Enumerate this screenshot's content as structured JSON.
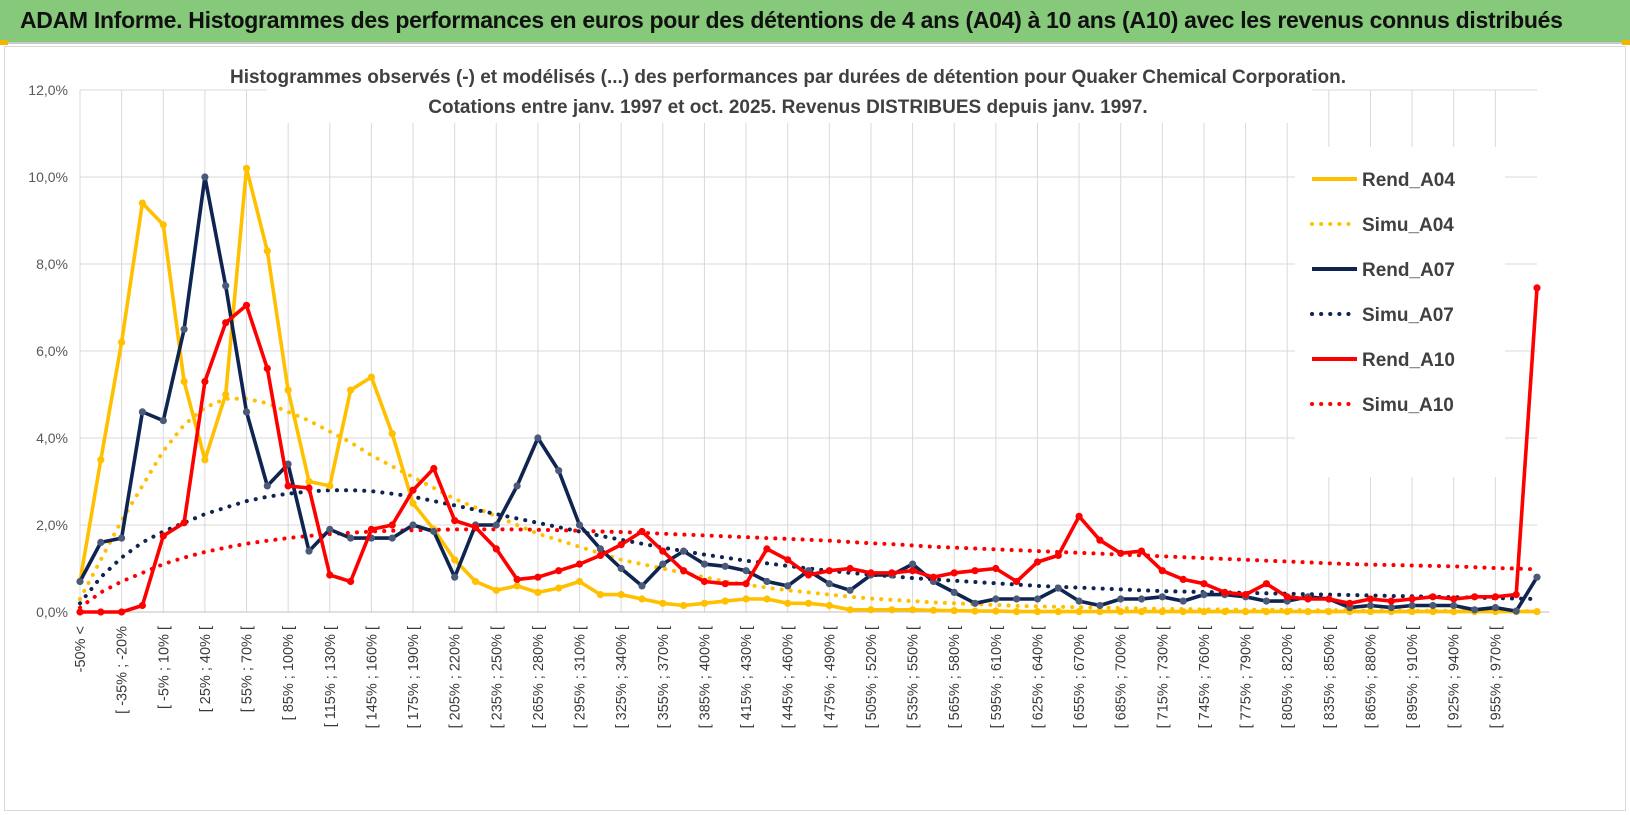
{
  "banner": {
    "title": "ADAM Informe. Histogrammes des performances en euros pour des détentions de 4 ans (A04) à 10 ans (A10) avec les revenus connus distribués"
  },
  "colors": {
    "banner_bg": "#86c97a",
    "A04": "#ffc000",
    "A07": "#0f2451",
    "A10": "#ff0000",
    "grid": "#d9d9d9"
  },
  "chart_data": {
    "type": "line",
    "title_line1": "Histogrammes observés (-) et modélisés (...) des performances par durées de détention pour Quaker Chemical Corporation.",
    "title_line2": "Cotations entre janv. 1997 et oct. 2025.  Revenus DISTRIBUES depuis janv. 1997.",
    "ylim": [
      0,
      12
    ],
    "yticks": [
      "0,0%",
      "2,0%",
      "4,0%",
      "6,0%",
      "8,0%",
      "10,0%",
      "12,0%"
    ],
    "legend_position": "right",
    "x_labels": [
      "-50% <",
      "[ -35% ; -20%",
      "[ -5% ; 10% [",
      "[ 25% ; 40% [",
      "[ 55% ; 70% [",
      "[ 85% ; 100% [",
      "[ 115% ; 130% [",
      "[ 145% ; 160% [",
      "[ 175% ; 190% [",
      "[ 205% ; 220% [",
      "[ 235% ; 250% [",
      "[ 265% ; 280% [",
      "[ 295% ; 310% [",
      "[ 325% ; 340% [",
      "[ 355% ; 370% [",
      "[ 385% ; 400% [",
      "[ 415% ; 430% [",
      "[ 445% ; 460% [",
      "[ 475% ; 490% [",
      "[ 505% ; 520% [",
      "[ 535% ; 550% [",
      "[ 565% ; 580% [",
      "[ 595% ; 610% [",
      "[ 625% ; 640% [",
      "[ 655% ; 670% [",
      "[ 685% ; 700% [",
      "[ 715% ; 730% [",
      "[ 745% ; 760% [",
      "[ 775% ; 790% [",
      "[ 805% ; 820% [",
      "[ 835% ; 850% [",
      "[ 865% ; 880% [",
      "[ 895% ; 910% [",
      "[ 925% ; 940% [",
      "[ 955% ; 970% ["
    ],
    "series": [
      {
        "name": "Rend_A04",
        "style": "solid",
        "color": "#ffc000",
        "values": [
          0.7,
          3.5,
          6.2,
          9.4,
          8.9,
          5.3,
          3.5,
          5.0,
          10.2,
          8.3,
          5.1,
          3.0,
          2.9,
          5.1,
          5.4,
          4.1,
          2.5,
          1.9,
          1.2,
          0.7,
          0.5,
          0.6,
          0.45,
          0.55,
          0.7,
          0.4,
          0.4,
          0.3,
          0.2,
          0.15,
          0.2,
          0.25,
          0.3,
          0.3,
          0.2,
          0.2,
          0.15,
          0.05,
          0.05,
          0.05,
          0.05,
          0.04,
          0.03,
          0.02,
          0.02,
          0.01,
          0.01,
          0.01,
          0.01,
          0.01,
          0.01,
          0.01,
          0.01,
          0.01,
          0.01,
          0.01,
          0.01,
          0.01,
          0.01,
          0.01,
          0.01,
          0.01,
          0.01,
          0.01,
          0.01,
          0.01,
          0.01,
          0.01,
          0.01,
          0.01,
          0.01
        ]
      },
      {
        "name": "Simu_A04",
        "style": "dotted",
        "color": "#ffc000",
        "values": [
          0.3,
          1.2,
          2.1,
          2.9,
          3.7,
          4.3,
          4.7,
          4.9,
          4.9,
          4.8,
          4.6,
          4.4,
          4.15,
          3.9,
          3.6,
          3.35,
          3.1,
          2.85,
          2.6,
          2.4,
          2.2,
          2.0,
          1.8,
          1.65,
          1.5,
          1.35,
          1.2,
          1.1,
          1.0,
          0.9,
          0.8,
          0.7,
          0.63,
          0.56,
          0.5,
          0.45,
          0.4,
          0.35,
          0.31,
          0.28,
          0.25,
          0.22,
          0.2,
          0.18,
          0.16,
          0.14,
          0.13,
          0.12,
          0.11,
          0.1,
          0.09,
          0.08,
          0.07,
          0.07,
          0.06,
          0.06,
          0.05,
          0.05,
          0.05,
          0.04,
          0.04,
          0.04,
          0.03,
          0.03,
          0.03,
          0.03,
          0.03,
          0.03,
          0.02,
          0.02,
          0.02
        ]
      },
      {
        "name": "Rend_A07",
        "style": "solid",
        "color": "#0f2451",
        "values": [
          0.7,
          1.6,
          1.7,
          4.6,
          4.4,
          6.5,
          10.0,
          7.5,
          4.6,
          2.9,
          3.4,
          1.4,
          1.9,
          1.7,
          1.7,
          1.7,
          2.0,
          1.85,
          0.8,
          2.0,
          2.0,
          2.9,
          4.0,
          3.25,
          2.0,
          1.45,
          1.0,
          0.6,
          1.1,
          1.4,
          1.1,
          1.05,
          0.95,
          0.7,
          0.6,
          0.95,
          0.65,
          0.5,
          0.85,
          0.85,
          1.1,
          0.7,
          0.45,
          0.2,
          0.3,
          0.3,
          0.3,
          0.55,
          0.25,
          0.15,
          0.3,
          0.3,
          0.35,
          0.25,
          0.4,
          0.4,
          0.35,
          0.25,
          0.25,
          0.35,
          0.3,
          0.1,
          0.15,
          0.1,
          0.15,
          0.15,
          0.15,
          0.05,
          0.1,
          0.02,
          0.8
        ]
      },
      {
        "name": "Simu_A07",
        "style": "dotted",
        "color": "#0f2451",
        "values": [
          0.2,
          0.8,
          1.25,
          1.6,
          1.85,
          2.05,
          2.25,
          2.4,
          2.55,
          2.65,
          2.72,
          2.77,
          2.8,
          2.8,
          2.78,
          2.72,
          2.65,
          2.55,
          2.45,
          2.35,
          2.25,
          2.15,
          2.05,
          1.95,
          1.85,
          1.75,
          1.66,
          1.57,
          1.48,
          1.4,
          1.32,
          1.25,
          1.18,
          1.12,
          1.06,
          1.0,
          0.95,
          0.9,
          0.86,
          0.82,
          0.78,
          0.75,
          0.72,
          0.69,
          0.66,
          0.63,
          0.6,
          0.58,
          0.56,
          0.54,
          0.52,
          0.5,
          0.48,
          0.47,
          0.46,
          0.45,
          0.44,
          0.43,
          0.42,
          0.41,
          0.4,
          0.39,
          0.38,
          0.37,
          0.36,
          0.35,
          0.34,
          0.33,
          0.32,
          0.31,
          0.3
        ]
      },
      {
        "name": "Rend_A10",
        "style": "solid",
        "color": "#ff0000",
        "values": [
          0.0,
          0.0,
          0.0,
          0.15,
          1.75,
          2.05,
          5.3,
          6.65,
          7.05,
          5.6,
          2.9,
          2.85,
          0.85,
          0.7,
          1.9,
          2.0,
          2.8,
          3.3,
          2.1,
          1.95,
          1.45,
          0.75,
          0.8,
          0.95,
          1.1,
          1.3,
          1.55,
          1.85,
          1.4,
          0.95,
          0.7,
          0.65,
          0.65,
          1.45,
          1.2,
          0.85,
          0.95,
          1.0,
          0.9,
          0.9,
          0.95,
          0.8,
          0.9,
          0.95,
          1.0,
          0.7,
          1.15,
          1.3,
          2.2,
          1.65,
          1.35,
          1.4,
          0.95,
          0.75,
          0.65,
          0.45,
          0.4,
          0.65,
          0.35,
          0.3,
          0.3,
          0.2,
          0.3,
          0.25,
          0.3,
          0.35,
          0.3,
          0.35,
          0.35,
          0.4,
          7.45
        ]
      },
      {
        "name": "Simu_A10",
        "style": "dotted",
        "color": "#ff0000",
        "values": [
          0.1,
          0.45,
          0.7,
          0.9,
          1.1,
          1.25,
          1.38,
          1.48,
          1.57,
          1.64,
          1.7,
          1.75,
          1.79,
          1.82,
          1.85,
          1.87,
          1.88,
          1.89,
          1.9,
          1.9,
          1.9,
          1.9,
          1.89,
          1.88,
          1.87,
          1.85,
          1.84,
          1.82,
          1.8,
          1.78,
          1.76,
          1.74,
          1.72,
          1.7,
          1.68,
          1.66,
          1.64,
          1.61,
          1.58,
          1.56,
          1.53,
          1.5,
          1.48,
          1.46,
          1.44,
          1.42,
          1.4,
          1.38,
          1.36,
          1.34,
          1.32,
          1.3,
          1.28,
          1.26,
          1.24,
          1.22,
          1.2,
          1.18,
          1.16,
          1.14,
          1.12,
          1.1,
          1.09,
          1.08,
          1.07,
          1.06,
          1.05,
          1.03,
          1.01,
          1.0,
          0.98
        ]
      }
    ]
  }
}
